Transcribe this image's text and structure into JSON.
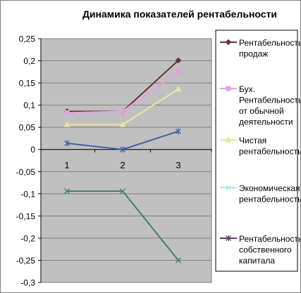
{
  "chart_data": {
    "type": "line",
    "title": "Динамика показателей рентабельности",
    "categories": [
      "1",
      "2",
      "3"
    ],
    "ylim": [
      -0.3,
      0.25
    ],
    "y_ticks": [
      "0,25",
      "0,2",
      "0,15",
      "0,1",
      "0,05",
      "0",
      "-0,05",
      "-0,1",
      "-0,15",
      "-0,2",
      "-0,25",
      "-0,3"
    ],
    "y_tick_values": [
      0.25,
      0.2,
      0.15,
      0.1,
      0.05,
      0,
      -0.05,
      -0.1,
      -0.15,
      -0.2,
      -0.25,
      -0.3
    ],
    "grid": "horizontal",
    "plot_background": "#c0c0c0",
    "legend_position": "right",
    "series": [
      {
        "name": "Рентабельность продаж",
        "legend_lines": [
          "Рентабельность",
          "продаж"
        ],
        "values": [
          0.086,
          0.086,
          0.201
        ],
        "color": "#663333",
        "marker": "diamond"
      },
      {
        "name": "Бух. Рентабельность от обычной деятельности",
        "legend_lines": [
          "Бух.",
          "Рентабельность",
          "от обычной",
          "деятельности"
        ],
        "values": [
          0.083,
          0.086,
          0.175
        ],
        "color": "#e6a0e6",
        "marker": "square"
      },
      {
        "name": "Чистая рентабельность",
        "legend_lines": [
          "Чистая",
          "рентабельность"
        ],
        "values": [
          0.056,
          0.056,
          0.136
        ],
        "color": "#e6e6a0",
        "marker": "triangle"
      },
      {
        "name": "Экономическая рентабельность",
        "legend_lines": [
          "Экономическая",
          "рентабельность"
        ],
        "values": [
          -0.094,
          -0.094,
          -0.25
        ],
        "color": "#40806e",
        "legend_color": "#a8e6e6",
        "marker": "x"
      },
      {
        "name": "Рентабельность собственного капитала",
        "legend_lines": [
          "Рентабельность",
          "собственного",
          "капитала"
        ],
        "values": [
          0.014,
          0.0,
          0.041
        ],
        "color": "#4060a0",
        "legend_color": "#663366",
        "marker": "star"
      }
    ]
  }
}
